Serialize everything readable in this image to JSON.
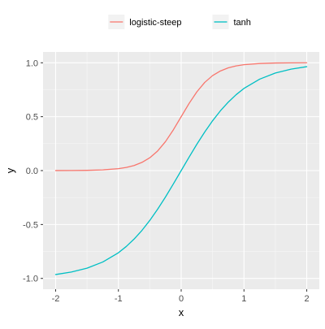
{
  "chart_data": {
    "type": "line",
    "title": "",
    "xlabel": "x",
    "ylabel": "y",
    "xlim": [
      -2,
      2
    ],
    "ylim": [
      -1,
      1
    ],
    "x_ticks": [
      -2,
      -1,
      0,
      1,
      2
    ],
    "x_tick_labels": [
      "-2",
      "-1",
      "0",
      "1",
      "2"
    ],
    "y_ticks": [
      -1,
      -0.5,
      0,
      0.5,
      1
    ],
    "y_tick_labels": [
      "-1.0",
      "-0.5",
      "0.0",
      "0.5",
      "1.0"
    ],
    "grid": true,
    "legend_position": "top",
    "background_color": "#ebebeb",
    "series": [
      {
        "name": "logistic-steep",
        "color": "#f8766d",
        "x": [
          -2,
          -1.75,
          -1.5,
          -1.25,
          -1,
          -0.875,
          -0.75,
          -0.625,
          -0.5,
          -0.375,
          -0.25,
          -0.125,
          0,
          0.125,
          0.25,
          0.375,
          0.5,
          0.625,
          0.75,
          0.875,
          1,
          1.25,
          1.5,
          1.75,
          2
        ],
        "y": [
          0.0003,
          0.0009,
          0.0025,
          0.0067,
          0.018,
          0.029,
          0.047,
          0.076,
          0.119,
          0.182,
          0.269,
          0.378,
          0.5,
          0.622,
          0.731,
          0.818,
          0.881,
          0.924,
          0.953,
          0.971,
          0.982,
          0.993,
          0.998,
          0.999,
          1.0
        ]
      },
      {
        "name": "tanh",
        "color": "#00bfc4",
        "x": [
          -2,
          -1.75,
          -1.5,
          -1.25,
          -1,
          -0.875,
          -0.75,
          -0.625,
          -0.5,
          -0.375,
          -0.25,
          -0.125,
          0,
          0.125,
          0.25,
          0.375,
          0.5,
          0.625,
          0.75,
          0.875,
          1,
          1.25,
          1.5,
          1.75,
          2
        ],
        "y": [
          -0.964,
          -0.941,
          -0.905,
          -0.848,
          -0.762,
          -0.704,
          -0.635,
          -0.555,
          -0.462,
          -0.358,
          -0.245,
          -0.124,
          0,
          0.124,
          0.245,
          0.358,
          0.462,
          0.555,
          0.635,
          0.704,
          0.762,
          0.848,
          0.905,
          0.941,
          0.964
        ]
      }
    ]
  }
}
